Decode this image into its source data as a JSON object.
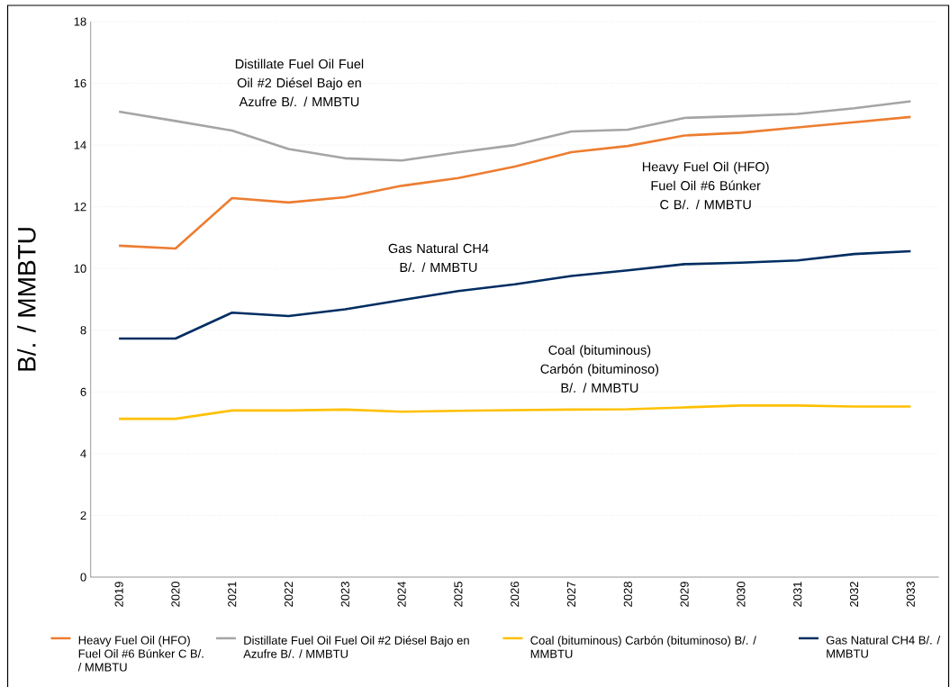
{
  "chart_data": {
    "type": "line",
    "ylabel": "B/. / MMBTU",
    "x": [
      2019,
      2020,
      2021,
      2022,
      2023,
      2024,
      2025,
      2026,
      2027,
      2028,
      2029,
      2030,
      2031,
      2032,
      2033
    ],
    "xlim": [
      2018.5,
      2033.5
    ],
    "xticks": [
      2019,
      2020,
      2021,
      2022,
      2023,
      2024,
      2025,
      2026,
      2027,
      2028,
      2029,
      2030,
      2031,
      2032,
      2033
    ],
    "ylim": [
      0,
      18
    ],
    "yticks": [
      0,
      2,
      4,
      6,
      8,
      10,
      12,
      14,
      16,
      18
    ],
    "grid": "y",
    "legend": "bottom",
    "marker": "none",
    "line_style": "solid",
    "series": [
      {
        "name": "Heavy Fuel Oil (HFO) Fuel Oil #6 Búnker C B/. / MMBTU",
        "color": "#ed7d31",
        "values": [
          10.74,
          10.65,
          12.28,
          12.14,
          12.31,
          12.68,
          12.93,
          13.3,
          13.77,
          13.97,
          14.31,
          14.4,
          14.57,
          14.74,
          14.91
        ]
      },
      {
        "name": "Distillate Fuel Oil Fuel Oil #2 Diésel Bajo en Azufre B/. / MMBTU",
        "color": "#a5a5a5",
        "values": [
          15.08,
          14.78,
          14.47,
          13.87,
          13.57,
          13.5,
          13.76,
          14.0,
          14.44,
          14.5,
          14.88,
          14.94,
          15.01,
          15.19,
          15.42
        ]
      },
      {
        "name": "Coal (bituminous) Carbón (bituminoso) B/. / MMBTU",
        "color": "#ffc000",
        "values": [
          5.13,
          5.13,
          5.4,
          5.4,
          5.43,
          5.36,
          5.39,
          5.41,
          5.43,
          5.44,
          5.5,
          5.56,
          5.56,
          5.53,
          5.53
        ]
      },
      {
        "name": "Gas Natural CH4 B/. / MMBTU",
        "color": "#002d62",
        "values": [
          7.73,
          7.73,
          8.57,
          8.46,
          8.68,
          8.98,
          9.27,
          9.49,
          9.76,
          9.94,
          10.14,
          10.19,
          10.26,
          10.47,
          10.56
        ]
      }
    ],
    "annotations": [
      "Distillate Fuel Oil Fuel Oil #2 Diésel Bajo en Azufre B/. / MMBTU",
      "Heavy Fuel Oil (HFO) Fuel Oil #6 Búnker C B/. / MMBTU",
      "Gas Natural CH4 B/. / MMBTU",
      "Coal (bituminous) Carbón (bituminoso) B/. / MMBTU"
    ]
  }
}
